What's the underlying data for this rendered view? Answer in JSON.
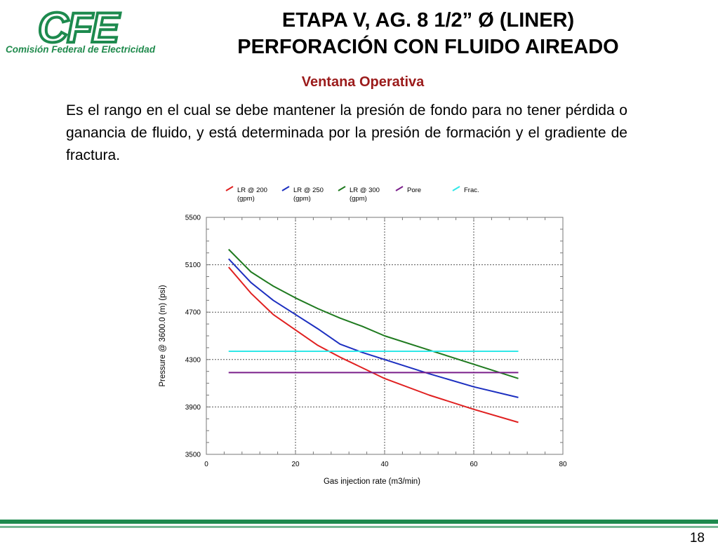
{
  "logo": {
    "brand": "CFE",
    "subtitle": "Comisión Federal de Electricidad"
  },
  "title": {
    "line1": "ETAPA V,  AG. 8 1/2” Ø (LINER)",
    "line2": "PERFORACIÓN CON FLUIDO AIREADO"
  },
  "subtitle": "Ventana Operativa",
  "paragraph": "Es el rango en el cual se debe mantener la presión de fondo para no tener pérdida o ganancia de fluido, y está determinada por la presión de formación y el gradiente de fractura.",
  "page_number": "18",
  "colors": {
    "brand_green": "#1d8a4e",
    "subtitle_red": "#9b1b1b"
  },
  "chart_data": {
    "type": "line",
    "xlabel": "Gas injection rate (m3/min)",
    "ylabel": "Pressure @ 3600.0 (m) (psi)",
    "xlim": [
      0,
      80
    ],
    "ylim": [
      3500,
      5500
    ],
    "xticks": [
      0,
      20,
      40,
      60,
      80
    ],
    "yticks": [
      3500,
      3900,
      4300,
      4700,
      5100,
      5500
    ],
    "grid": true,
    "legend_position": "top",
    "series": [
      {
        "name": "LR @ 200",
        "unit": "(gpm)",
        "color": "#e02020",
        "x": [
          5,
          10,
          15,
          20,
          25,
          30,
          35,
          40,
          50,
          60,
          70
        ],
        "y": [
          5080,
          4860,
          4680,
          4550,
          4420,
          4320,
          4230,
          4140,
          4000,
          3880,
          3770
        ]
      },
      {
        "name": "LR @ 250",
        "unit": "(gpm)",
        "color": "#1c2fc0",
        "x": [
          5,
          10,
          15,
          20,
          25,
          30,
          35,
          40,
          50,
          60,
          70
        ],
        "y": [
          5150,
          4950,
          4800,
          4680,
          4560,
          4430,
          4360,
          4300,
          4180,
          4070,
          3980
        ]
      },
      {
        "name": "LR @ 300",
        "unit": "(gpm)",
        "color": "#1f7a1f",
        "x": [
          5,
          10,
          15,
          20,
          25,
          30,
          35,
          40,
          50,
          60,
          70
        ],
        "y": [
          5230,
          5040,
          4920,
          4820,
          4730,
          4650,
          4580,
          4500,
          4380,
          4260,
          4140
        ]
      },
      {
        "name": "Pore",
        "unit": "",
        "color": "#7a1f8a",
        "x": [
          5,
          70
        ],
        "y": [
          4190,
          4190
        ]
      },
      {
        "name": "Frac.",
        "unit": "",
        "color": "#30e8e8",
        "x": [
          5,
          70
        ],
        "y": [
          4370,
          4370
        ]
      }
    ]
  }
}
